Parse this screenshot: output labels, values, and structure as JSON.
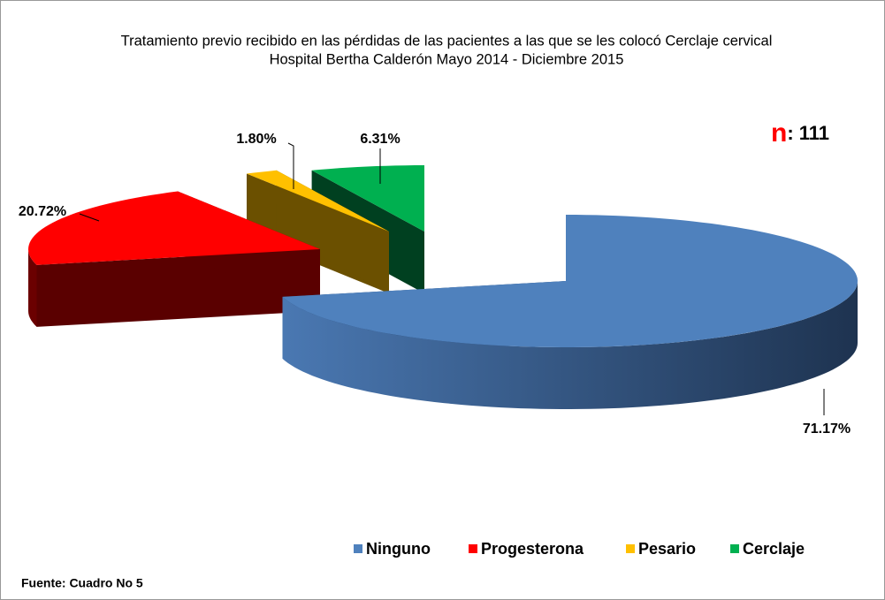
{
  "chart_data": {
    "type": "pie3d",
    "title": "Tratamiento previo recibido en las pérdidas de las  pacientes a las que se  les colocó Cerclaje cervical",
    "subtitle": "Hospital Bertha Calderón Mayo 2014 - Diciembre 2015",
    "categories": [
      "Ninguno",
      "Progesterona",
      "Pesario",
      "Cerclaje"
    ],
    "values": [
      71.17,
      20.72,
      1.8,
      6.31
    ],
    "value_labels": [
      "71.17%",
      "20.72%",
      "1.80%",
      "6.31%"
    ],
    "colors": [
      "#4f81bd",
      "#ff0000",
      "#ffc000",
      "#00b050"
    ],
    "annotation": [
      "n",
      ": 111"
    ],
    "source": "Fuente: Cuadro No 5",
    "legend": "bottom"
  }
}
